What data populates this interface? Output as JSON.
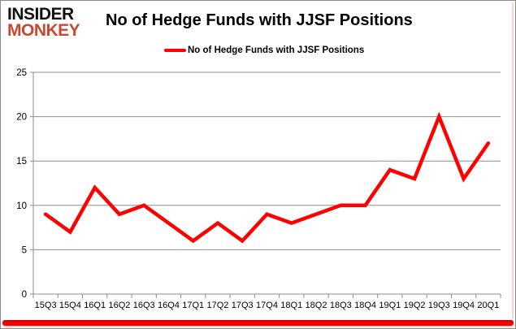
{
  "logo": {
    "line1": "INSIDER",
    "line2": "MONKEY"
  },
  "header": {
    "title": "No of Hedge Funds with JJSF Positions"
  },
  "legend": {
    "label": "No of Hedge Funds with JJSF Positions"
  },
  "colors": {
    "series_red": "#ff0000",
    "logo_red": "#c7492f",
    "grid_gray": "#8e8e8e",
    "axis_text": "#000000",
    "bottom_bar_red": "#ff0000",
    "bottom_bar_dark_red": "#c00000"
  },
  "chart_data": {
    "type": "line",
    "title": "No of Hedge Funds with JJSF Positions",
    "categories": [
      "15Q3",
      "15Q4",
      "16Q1",
      "16Q2",
      "16Q3",
      "16Q4",
      "17Q1",
      "17Q2",
      "17Q3",
      "17Q4",
      "18Q1",
      "18Q2",
      "18Q3",
      "18Q4",
      "19Q1",
      "19Q2",
      "19Q3",
      "19Q4",
      "20Q1"
    ],
    "series": [
      {
        "name": "No of Hedge Funds with JJSF Positions",
        "color": "#ff0000",
        "values": [
          9,
          7,
          12,
          9,
          10,
          8,
          6,
          8,
          6,
          9,
          8,
          9,
          10,
          10,
          14,
          13,
          20,
          13,
          17
        ]
      }
    ],
    "xlabel": "",
    "ylabel": "",
    "ylim": [
      0,
      25
    ],
    "yticks": [
      0,
      5,
      10,
      15,
      20,
      25
    ],
    "grid": true,
    "legend_position": "top-center"
  }
}
